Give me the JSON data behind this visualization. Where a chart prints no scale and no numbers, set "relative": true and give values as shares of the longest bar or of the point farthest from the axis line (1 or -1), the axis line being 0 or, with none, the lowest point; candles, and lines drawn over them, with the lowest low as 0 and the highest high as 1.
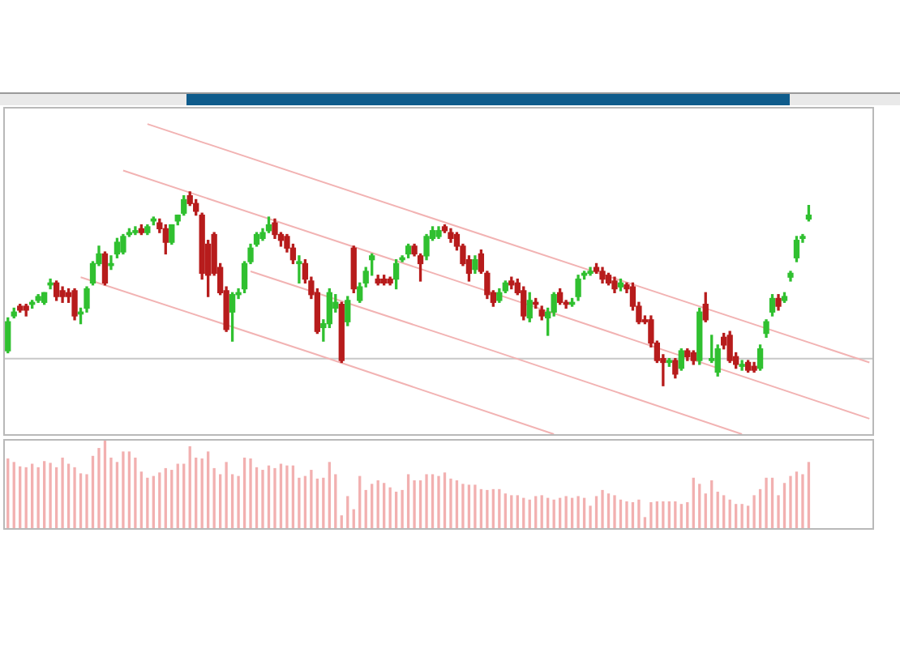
{
  "chart_data": [
    {
      "type": "candlestick",
      "relative": true,
      "tick_labels": false,
      "categories": [
        null,
        null,
        null,
        null,
        null,
        null,
        null,
        null,
        null,
        null,
        null,
        null,
        null,
        null,
        null,
        null,
        null,
        null,
        null,
        null,
        null,
        null,
        null,
        null,
        null,
        null,
        null,
        null,
        null,
        null,
        null,
        null,
        null,
        null,
        null,
        null,
        null,
        null,
        null,
        null,
        null,
        null,
        null,
        null,
        null,
        null,
        null,
        null,
        null,
        null,
        null,
        null,
        null,
        null,
        null,
        null,
        null,
        null,
        null,
        null,
        null,
        null,
        null,
        null,
        null,
        null,
        null,
        null,
        null,
        null,
        null,
        null,
        null,
        null,
        null,
        null,
        null,
        null,
        null,
        null,
        null,
        null,
        null,
        null,
        null,
        null,
        null,
        null,
        null,
        null,
        null,
        null,
        null,
        null,
        null,
        null,
        null,
        null,
        null,
        null,
        null,
        null,
        null,
        null,
        null,
        null,
        null,
        null,
        null,
        null,
        null,
        null,
        null,
        null,
        null,
        null,
        null,
        null,
        null,
        null,
        null,
        null,
        null,
        null,
        null,
        null,
        null,
        null,
        null,
        null,
        null,
        null,
        null,
        null,
        null,
        null,
        null,
        null,
        null,
        null,
        null,
        null,
        null
      ],
      "ohlc": [
        [
          0.18,
          0.35,
          0.17,
          0.33
        ],
        [
          0.36,
          0.4,
          0.35,
          0.38
        ],
        [
          0.41,
          0.42,
          0.38,
          0.39
        ],
        [
          0.41,
          0.42,
          0.36,
          0.39
        ],
        [
          0.42,
          0.44,
          0.4,
          0.43
        ],
        [
          0.44,
          0.47,
          0.43,
          0.46
        ],
        [
          0.43,
          0.48,
          0.42,
          0.48
        ],
        [
          0.52,
          0.55,
          0.5,
          0.53
        ],
        [
          0.53,
          0.54,
          0.44,
          0.46
        ],
        [
          0.49,
          0.51,
          0.43,
          0.46
        ],
        [
          0.48,
          0.5,
          0.43,
          0.46
        ],
        [
          0.49,
          0.5,
          0.34,
          0.36
        ],
        [
          0.37,
          0.4,
          0.32,
          0.38
        ],
        [
          0.4,
          0.51,
          0.38,
          0.5
        ],
        [
          0.53,
          0.64,
          0.52,
          0.63
        ],
        [
          0.63,
          0.72,
          0.62,
          0.68
        ],
        [
          0.68,
          0.69,
          0.52,
          0.53
        ],
        [
          0.62,
          0.67,
          0.6,
          0.63
        ],
        [
          0.68,
          0.76,
          0.66,
          0.74
        ],
        [
          0.69,
          0.78,
          0.68,
          0.77
        ],
        [
          0.78,
          0.81,
          0.77,
          0.79
        ],
        [
          0.79,
          0.82,
          0.78,
          0.8
        ],
        [
          0.81,
          0.83,
          0.78,
          0.79
        ],
        [
          0.79,
          0.83,
          0.78,
          0.82
        ],
        [
          0.85,
          0.87,
          0.83,
          0.86
        ],
        [
          0.84,
          0.86,
          0.79,
          0.81
        ],
        [
          0.81,
          0.83,
          0.68,
          0.74
        ],
        [
          0.74,
          0.83,
          0.73,
          0.83
        ],
        [
          0.85,
          0.88,
          0.83,
          0.88
        ],
        [
          0.89,
          0.98,
          0.88,
          0.96
        ],
        [
          0.98,
          1,
          0.93,
          0.94
        ],
        [
          0.94,
          0.96,
          0.88,
          0.9
        ],
        [
          0.88,
          0.89,
          0.55,
          0.58
        ],
        [
          0.73,
          0.75,
          0.46,
          0.57
        ],
        [
          0.78,
          0.79,
          0.57,
          0.58
        ],
        [
          0.61,
          0.63,
          0.47,
          0.48
        ],
        [
          0.49,
          0.51,
          0.28,
          0.29
        ],
        [
          0.38,
          0.48,
          0.23,
          0.47
        ],
        [
          0.47,
          0.5,
          0.45,
          0.48
        ],
        [
          0.5,
          0.64,
          0.48,
          0.63
        ],
        [
          0.64,
          0.73,
          0.63,
          0.71
        ],
        [
          0.73,
          0.79,
          0.72,
          0.78
        ],
        [
          0.76,
          0.81,
          0.75,
          0.79
        ],
        [
          0.8,
          0.87,
          0.79,
          0.83
        ],
        [
          0.84,
          0.86,
          0.76,
          0.78
        ],
        [
          0.78,
          0.79,
          0.72,
          0.75
        ],
        [
          0.77,
          0.78,
          0.69,
          0.71
        ],
        [
          0.71,
          0.73,
          0.63,
          0.65
        ],
        [
          0.63,
          0.67,
          0.53,
          0.64
        ],
        [
          0.63,
          0.65,
          0.53,
          0.55
        ],
        [
          0.54,
          0.56,
          0.45,
          0.47
        ],
        [
          0.48,
          0.5,
          0.27,
          0.28
        ],
        [
          0.3,
          0.34,
          0.23,
          0.32
        ],
        [
          0.32,
          0.5,
          0.3,
          0.48
        ],
        [
          0.4,
          0.47,
          0.38,
          0.43
        ],
        [
          0.42,
          0.43,
          0.12,
          0.13
        ],
        [
          0.33,
          0.46,
          0.31,
          0.44
        ],
        [
          0.71,
          0.72,
          0.48,
          0.5
        ],
        [
          0.44,
          0.53,
          0.43,
          0.51
        ],
        [
          0.53,
          0.61,
          0.51,
          0.59
        ],
        [
          0.65,
          0.68,
          0.57,
          0.67
        ],
        [
          0.55,
          0.57,
          0.52,
          0.53
        ],
        [
          0.55,
          0.57,
          0.52,
          0.53
        ],
        [
          0.55,
          0.56,
          0.52,
          0.53
        ],
        [
          0.55,
          0.65,
          0.5,
          0.63
        ],
        [
          0.65,
          0.67,
          0.64,
          0.66
        ],
        [
          0.68,
          0.73,
          0.66,
          0.72
        ],
        [
          0.72,
          0.73,
          0.67,
          0.68
        ],
        [
          0.67,
          0.68,
          0.54,
          0.63
        ],
        [
          0.67,
          0.78,
          0.65,
          0.77
        ],
        [
          0.76,
          0.82,
          0.75,
          0.8
        ],
        [
          0.77,
          0.82,
          0.76,
          0.8
        ],
        [
          0.82,
          0.83,
          0.79,
          0.8
        ],
        [
          0.79,
          0.81,
          0.74,
          0.76
        ],
        [
          0.78,
          0.79,
          0.7,
          0.72
        ],
        [
          0.72,
          0.73,
          0.62,
          0.63
        ],
        [
          0.65,
          0.67,
          0.54,
          0.58
        ],
        [
          0.6,
          0.67,
          0.58,
          0.65
        ],
        [
          0.68,
          0.7,
          0.58,
          0.59
        ],
        [
          0.58,
          0.59,
          0.45,
          0.47
        ],
        [
          0.48,
          0.49,
          0.41,
          0.43
        ],
        [
          0.44,
          0.5,
          0.43,
          0.48
        ],
        [
          0.49,
          0.54,
          0.48,
          0.53
        ],
        [
          0.54,
          0.56,
          0.5,
          0.52
        ],
        [
          0.53,
          0.55,
          0.47,
          0.48
        ],
        [
          0.49,
          0.51,
          0.34,
          0.36
        ],
        [
          0.35,
          0.48,
          0.33,
          0.44
        ],
        [
          0.43,
          0.45,
          0.4,
          0.42
        ],
        [
          0.39,
          0.41,
          0.34,
          0.36
        ],
        [
          0.35,
          0.4,
          0.26,
          0.38
        ],
        [
          0.38,
          0.48,
          0.36,
          0.47
        ],
        [
          0.48,
          0.5,
          0.42,
          0.43
        ],
        [
          0.43,
          0.44,
          0.4,
          0.42
        ],
        [
          0.42,
          0.45,
          0.41,
          0.43
        ],
        [
          0.46,
          0.57,
          0.44,
          0.55
        ],
        [
          0.57,
          0.59,
          0.55,
          0.58
        ],
        [
          0.58,
          0.61,
          0.57,
          0.59
        ],
        [
          0.61,
          0.63,
          0.58,
          0.59
        ],
        [
          0.59,
          0.61,
          0.53,
          0.55
        ],
        [
          0.57,
          0.58,
          0.52,
          0.53
        ],
        [
          0.54,
          0.56,
          0.48,
          0.5
        ],
        [
          0.51,
          0.55,
          0.49,
          0.53
        ],
        [
          0.52,
          0.53,
          0.48,
          0.5
        ],
        [
          0.51,
          0.53,
          0.39,
          0.41
        ],
        [
          0.41,
          0.43,
          0.32,
          0.33
        ],
        [
          0.34,
          0.36,
          0.32,
          0.33
        ],
        [
          0.34,
          0.36,
          0.2,
          0.22
        ],
        [
          0.22,
          0.23,
          0.12,
          0.13
        ],
        [
          0.14,
          0.16,
          0,
          0.12
        ],
        [
          0.12,
          0.14,
          0.1,
          0.13
        ],
        [
          0.13,
          0.14,
          0.04,
          0.06
        ],
        [
          0.09,
          0.19,
          0.08,
          0.18
        ],
        [
          0.18,
          0.19,
          0.13,
          0.15
        ],
        [
          0.17,
          0.18,
          0.11,
          0.13
        ],
        [
          0.13,
          0.4,
          0.11,
          0.38
        ],
        [
          0.42,
          0.48,
          0.33,
          0.34
        ],
        [
          0.13,
          0.26,
          0.12,
          0.14
        ],
        [
          0.07,
          0.21,
          0.05,
          0.19
        ],
        [
          0.25,
          0.27,
          0.19,
          0.21
        ],
        [
          0.26,
          0.28,
          0.12,
          0.13
        ],
        [
          0.15,
          0.17,
          0.09,
          0.11
        ],
        [
          0.1,
          0.13,
          0.08,
          0.11
        ],
        [
          0.12,
          0.13,
          0.07,
          0.08
        ],
        [
          0.1,
          0.12,
          0.07,
          0.08
        ],
        [
          0.09,
          0.21,
          0.08,
          0.19
        ],
        [
          0.27,
          0.34,
          0.25,
          0.33
        ],
        [
          0.38,
          0.47,
          0.36,
          0.45
        ],
        [
          0.45,
          0.47,
          0.39,
          0.41
        ],
        [
          0.44,
          0.48,
          0.43,
          0.46
        ],
        [
          0.56,
          0.59,
          0.54,
          0.58
        ],
        [
          0.66,
          0.77,
          0.64,
          0.75
        ],
        [
          0.76,
          0.78,
          0.74,
          0.77
        ],
        [
          0.86,
          0.93,
          0.85,
          0.88
        ],
        null,
        null,
        null,
        null,
        null,
        null,
        null,
        null,
        null,
        null
      ],
      "colors": [
        "#30c030",
        "#30c030",
        "#b71c1c",
        "#b71c1c",
        "#30c030",
        "#30c030",
        "#30c030",
        "#30c030",
        "#b71c1c",
        "#b71c1c",
        "#b71c1c",
        "#b71c1c",
        "#30c030",
        "#30c030",
        "#30c030",
        "#30c030",
        "#b71c1c",
        "#30c030",
        "#30c030",
        "#30c030",
        "#30c030",
        "#30c030",
        "#b71c1c",
        "#30c030",
        "#30c030",
        "#b71c1c",
        "#b71c1c",
        "#30c030",
        "#30c030",
        "#30c030",
        "#b71c1c",
        "#b71c1c",
        "#b71c1c",
        "#b71c1c",
        "#b71c1c",
        "#b71c1c",
        "#b71c1c",
        "#30c030",
        "#30c030",
        "#30c030",
        "#30c030",
        "#30c030",
        "#30c030",
        "#30c030",
        "#b71c1c",
        "#b71c1c",
        "#b71c1c",
        "#b71c1c",
        "#30c030",
        "#b71c1c",
        "#b71c1c",
        "#b71c1c",
        "#30c030",
        "#30c030",
        "#30c030",
        "#b71c1c",
        "#30c030",
        "#b71c1c",
        "#30c030",
        "#30c030",
        "#30c030",
        "#b71c1c",
        "#b71c1c",
        "#b71c1c",
        "#30c030",
        "#30c030",
        "#30c030",
        "#b71c1c",
        "#b71c1c",
        "#30c030",
        "#30c030",
        "#30c030",
        "#b71c1c",
        "#b71c1c",
        "#b71c1c",
        "#b71c1c",
        "#b71c1c",
        "#30c030",
        "#b71c1c",
        "#b71c1c",
        "#b71c1c",
        "#30c030",
        "#30c030",
        "#b71c1c",
        "#b71c1c",
        "#b71c1c",
        "#30c030",
        "#b71c1c",
        "#b71c1c",
        "#30c030",
        "#30c030",
        "#b71c1c",
        "#b71c1c",
        "#30c030",
        "#30c030",
        "#30c030",
        "#30c030",
        "#b71c1c",
        "#b71c1c",
        "#b71c1c",
        "#b71c1c",
        "#30c030",
        "#b71c1c",
        "#b71c1c",
        "#b71c1c",
        "#b71c1c",
        "#b71c1c",
        "#b71c1c",
        "#b71c1c",
        "#30c030",
        "#b71c1c",
        "#30c030",
        "#b71c1c",
        "#b71c1c",
        "#30c030",
        "#b71c1c",
        "#30c030",
        "#30c030",
        "#b71c1c",
        "#b71c1c",
        "#b71c1c",
        "#30c030",
        "#b71c1c",
        "#b71c1c",
        "#30c030",
        "#30c030",
        "#30c030",
        "#b71c1c",
        "#30c030",
        "#30c030",
        "#30c030",
        "#30c030",
        "#30c030",
        null,
        null,
        null,
        null,
        null,
        null,
        null,
        null,
        null,
        null
      ],
      "series": [
        {
          "type": "line",
          "color": "#f2b3b3",
          "values": [
            null,
            null,
            null,
            null,
            null,
            null,
            null,
            null,
            null,
            null,
            null,
            null,
            null,
            null,
            null,
            null,
            null,
            null,
            null,
            null,
            null,
            null,
            null,
            1.35,
            null,
            null,
            null,
            null,
            null,
            null,
            null,
            null,
            null,
            null,
            null,
            null,
            null,
            null,
            null,
            null,
            null,
            null,
            null,
            null,
            null,
            null,
            null,
            null,
            null,
            null,
            null,
            null,
            null,
            null,
            null,
            null,
            null,
            null,
            null,
            null,
            null,
            null,
            null,
            null,
            null,
            null,
            null,
            null,
            null,
            null,
            null,
            null,
            null,
            null,
            null,
            null,
            null,
            null,
            null,
            null,
            0.76,
            null,
            null,
            null,
            null,
            null,
            null,
            null,
            null,
            null,
            null,
            null,
            null,
            null,
            null,
            null,
            null,
            null,
            null,
            null,
            null,
            null,
            null,
            null,
            null,
            null,
            null,
            null,
            null,
            null,
            null,
            null,
            null,
            null,
            null,
            null,
            null,
            null,
            null,
            null,
            null,
            null,
            null,
            null,
            null,
            null,
            null,
            null,
            null,
            null,
            null,
            null,
            null,
            null,
            null,
            null,
            null,
            null,
            null,
            null,
            null,
            null,
            0.12
          ]
        },
        {
          "type": "line",
          "color": "#f2b3b3",
          "values": [
            null,
            null,
            null,
            null,
            null,
            null,
            null,
            null,
            null,
            null,
            null,
            null,
            null,
            null,
            null,
            null,
            null,
            null,
            null,
            1.11,
            null,
            null,
            null,
            null,
            null,
            null,
            null,
            null,
            null,
            null,
            null,
            null,
            null,
            null,
            null,
            null,
            null,
            null,
            null,
            null,
            null,
            null,
            null,
            null,
            null,
            null,
            null,
            null,
            null,
            null,
            null,
            null,
            null,
            null,
            null,
            null,
            null,
            null,
            null,
            null,
            null,
            null,
            null,
            null,
            null,
            null,
            null,
            null,
            null,
            null,
            null,
            null,
            null,
            null,
            null,
            0.53,
            null,
            null,
            null,
            null,
            null,
            null,
            null,
            null,
            null,
            null,
            null,
            null,
            null,
            null,
            null,
            null,
            null,
            null,
            null,
            null,
            null,
            null,
            null,
            null,
            null,
            null,
            null,
            null,
            null,
            null,
            null,
            null,
            null,
            null,
            null,
            null,
            null,
            null,
            null,
            null,
            null,
            null,
            null,
            null,
            null,
            null,
            null,
            null,
            null,
            null,
            null,
            null,
            null,
            null,
            null,
            null,
            null,
            null,
            null,
            null,
            null,
            null,
            null,
            null,
            null,
            null,
            -0.17
          ]
        },
        {
          "type": "line",
          "color": "#f2b3b3",
          "values": [
            null,
            null,
            null,
            null,
            null,
            null,
            null,
            null,
            null,
            null,
            null,
            null,
            null,
            null,
            null,
            null,
            null,
            null,
            null,
            null,
            null,
            null,
            null,
            null,
            null,
            null,
            null,
            null,
            null,
            null,
            null,
            null,
            null,
            null,
            null,
            null,
            null,
            null,
            null,
            null,
            0.59,
            null,
            null,
            null,
            null,
            null,
            null,
            null,
            null,
            null,
            null,
            null,
            null,
            null,
            null,
            null,
            null,
            null,
            null,
            null,
            null,
            null,
            null,
            null,
            null,
            null,
            null,
            null,
            null,
            null,
            null,
            null,
            null,
            null,
            null,
            null,
            null,
            null,
            null,
            null,
            0.18,
            null,
            null,
            null,
            null,
            null,
            null,
            null,
            null,
            null,
            null,
            null,
            null,
            null,
            null,
            null,
            null,
            null,
            null,
            null,
            null,
            null,
            null,
            null,
            null,
            null,
            null,
            null,
            null,
            null,
            null,
            null,
            null,
            null,
            null,
            null,
            null,
            null,
            null,
            null,
            null,
            -0.25,
            null,
            null,
            null,
            null,
            null,
            null,
            null,
            null,
            null,
            null,
            null,
            null,
            null,
            null,
            null,
            null,
            null,
            null,
            null,
            null,
            null
          ]
        },
        {
          "type": "line",
          "color": "#f2b3b3",
          "values": [
            null,
            null,
            null,
            null,
            null,
            null,
            null,
            null,
            null,
            null,
            null,
            null,
            0.56,
            null,
            null,
            null,
            null,
            null,
            null,
            null,
            null,
            null,
            null,
            null,
            null,
            null,
            null,
            null,
            null,
            null,
            null,
            null,
            null,
            null,
            null,
            null,
            null,
            null,
            null,
            null,
            null,
            null,
            null,
            null,
            null,
            null,
            null,
            null,
            null,
            null,
            0.17,
            null,
            null,
            null,
            null,
            null,
            null,
            null,
            null,
            null,
            null,
            null,
            null,
            null,
            null,
            null,
            null,
            null,
            null,
            null,
            null,
            null,
            null,
            null,
            null,
            null,
            null,
            null,
            null,
            null,
            null,
            null,
            null,
            null,
            null,
            null,
            null,
            null,
            null,
            null,
            -0.25,
            null,
            null,
            null,
            null,
            null,
            null,
            null,
            null,
            null,
            null,
            null,
            null,
            null,
            null,
            null,
            null,
            null,
            null,
            null,
            null,
            null,
            null,
            null,
            null,
            null,
            null,
            null,
            null,
            null,
            null,
            null,
            null,
            null,
            null,
            null,
            null,
            null,
            null,
            null,
            null,
            null,
            null,
            null,
            null,
            null,
            null,
            null,
            null,
            null,
            null,
            null,
            null
          ]
        }
      ],
      "ref_lines": [
        {
          "axis": "y",
          "value": 0.14,
          "color": "#c8c8c8"
        }
      ]
    },
    {
      "type": "bar",
      "relative": true,
      "tick_labels": false,
      "color": "#f2b0b0",
      "categories": [
        null,
        null,
        null,
        null,
        null,
        null,
        null,
        null,
        null,
        null,
        null,
        null,
        null,
        null,
        null,
        null,
        null,
        null,
        null,
        null,
        null,
        null,
        null,
        null,
        null,
        null,
        null,
        null,
        null,
        null,
        null,
        null,
        null,
        null,
        null,
        null,
        null,
        null,
        null,
        null,
        null,
        null,
        null,
        null,
        null,
        null,
        null,
        null,
        null,
        null,
        null,
        null,
        null,
        null,
        null,
        null,
        null,
        null,
        null,
        null,
        null,
        null,
        null,
        null,
        null,
        null,
        null,
        null,
        null,
        null,
        null,
        null,
        null,
        null,
        null,
        null,
        null,
        null,
        null,
        null,
        null,
        null,
        null,
        null,
        null,
        null,
        null,
        null,
        null,
        null,
        null,
        null,
        null,
        null,
        null,
        null,
        null,
        null,
        null,
        null,
        null,
        null,
        null,
        null,
        null,
        null,
        null,
        null,
        null,
        null,
        null,
        null,
        null,
        null,
        null,
        null,
        null,
        null,
        null,
        null,
        null,
        null,
        null,
        null,
        null,
        null,
        null,
        null,
        null,
        null,
        null,
        null,
        null,
        null,
        null,
        null,
        null,
        null,
        null,
        null,
        null,
        null,
        null
      ],
      "values": [
        0.79,
        0.75,
        0.7,
        0.69,
        0.73,
        0.69,
        0.76,
        0.74,
        0.69,
        0.8,
        0.73,
        0.69,
        0.62,
        0.61,
        0.82,
        0.91,
        1,
        0.8,
        0.75,
        0.87,
        0.87,
        0.8,
        0.64,
        0.57,
        0.59,
        0.63,
        0.68,
        0.66,
        0.73,
        0.73,
        0.93,
        0.8,
        0.79,
        0.87,
        0.68,
        0.61,
        0.75,
        0.61,
        0.59,
        0.8,
        0.79,
        0.69,
        0.66,
        0.71,
        0.68,
        0.73,
        0.71,
        0.71,
        0.57,
        0.59,
        0.66,
        0.56,
        0.57,
        0.75,
        0.61,
        0.14,
        0.36,
        0.21,
        0.59,
        0.43,
        0.5,
        0.54,
        0.51,
        0.46,
        0.41,
        0.43,
        0.61,
        0.54,
        0.54,
        0.61,
        0.61,
        0.59,
        0.63,
        0.56,
        0.54,
        0.5,
        0.49,
        0.49,
        0.44,
        0.43,
        0.44,
        0.44,
        0.39,
        0.37,
        0.37,
        0.34,
        0.32,
        0.36,
        0.37,
        0.34,
        0.32,
        0.34,
        0.36,
        0.34,
        0.36,
        0.34,
        0.25,
        0.36,
        0.43,
        0.39,
        0.37,
        0.32,
        0.3,
        0.29,
        0.32,
        0.12,
        0.29,
        0.3,
        0.3,
        0.3,
        0.3,
        0.27,
        0.29,
        0.57,
        0.5,
        0.39,
        0.54,
        0.41,
        0.37,
        0.32,
        0.27,
        0.27,
        0.25,
        0.37,
        0.44,
        0.57,
        0.57,
        0.37,
        0.51,
        0.59,
        0.64,
        0.61,
        0.75,
        null,
        null,
        null,
        null,
        null,
        null,
        null,
        null,
        null,
        null
      ]
    }
  ]
}
